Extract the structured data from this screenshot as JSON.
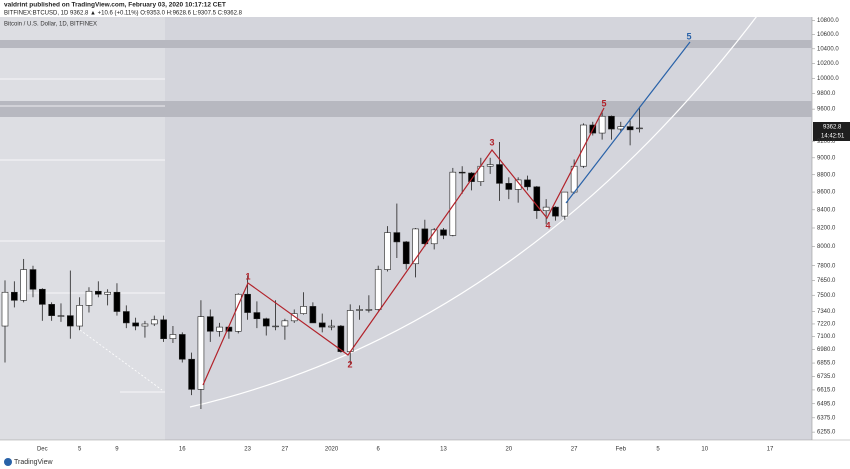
{
  "header": {
    "author_line": "valdrint published on TradingView.com, February 03, 2020 10:17:12 CET",
    "symbol_line": "BITFINEX:BTCUSD, 1D 9362.8 ▲ +10.6 (+0.11%) O:9353.0 H:9628.6 L:9307.5 C:9362.8",
    "logo": "TradingView"
  },
  "chart_data": {
    "type": "candlestick",
    "title": "Bitcoin / U.S. Dollar, 1D, BITFINEX",
    "log_scale": true,
    "up_color": "#ffffff",
    "down_color": "#000000",
    "countdown": "14:42:51",
    "categories": [
      null,
      null,
      null,
      null,
      "Dec",
      null,
      null,
      null,
      "5",
      null,
      null,
      null,
      "9",
      null,
      null,
      null,
      null,
      null,
      null,
      "16",
      null,
      null,
      null,
      null,
      null,
      null,
      "23",
      null,
      null,
      null,
      "27",
      null,
      null,
      null,
      null,
      "2020",
      null,
      null,
      null,
      null,
      "6",
      null,
      null,
      null,
      null,
      null,
      null,
      "13",
      null,
      null,
      null,
      null,
      null,
      null,
      "20",
      null,
      null,
      null,
      null,
      null,
      null,
      "27",
      null,
      null,
      null,
      null,
      "Feb",
      null,
      null,
      null,
      "5",
      null,
      null,
      null,
      null,
      "10",
      null,
      null,
      null,
      null,
      null,
      null,
      "17",
      null,
      null,
      null
    ],
    "candles": [
      [
        7200,
        7650,
        6860,
        7530
      ],
      [
        7530,
        7640,
        7380,
        7450
      ],
      [
        7450,
        7870,
        7430,
        7760
      ],
      [
        7760,
        7800,
        7480,
        7560
      ],
      [
        7560,
        7570,
        7250,
        7410
      ],
      [
        7410,
        7430,
        7250,
        7300
      ],
      [
        7300,
        7420,
        7240,
        7300
      ],
      [
        7300,
        7750,
        7080,
        7200
      ],
      [
        7200,
        7480,
        7160,
        7400
      ],
      [
        7400,
        7580,
        7330,
        7540
      ],
      [
        7540,
        7640,
        7480,
        7510
      ],
      [
        7510,
        7560,
        7400,
        7530
      ],
      [
        7530,
        7620,
        7300,
        7340
      ],
      [
        7340,
        7400,
        7180,
        7230
      ],
      [
        7230,
        7280,
        7160,
        7200
      ],
      [
        7200,
        7250,
        7090,
        7220
      ],
      [
        7220,
        7300,
        7200,
        7260
      ],
      [
        7260,
        7300,
        7050,
        7080
      ],
      [
        7080,
        7200,
        7040,
        7120
      ],
      [
        7120,
        7140,
        6860,
        6890
      ],
      [
        6890,
        6950,
        6570,
        6620
      ],
      [
        6620,
        7450,
        6450,
        7290
      ],
      [
        7290,
        7360,
        7050,
        7150
      ],
      [
        7150,
        7230,
        7100,
        7190
      ],
      [
        7190,
        7200,
        7080,
        7150
      ],
      [
        7150,
        7520,
        7130,
        7510
      ],
      [
        7510,
        7700,
        7260,
        7330
      ],
      [
        7330,
        7440,
        7180,
        7270
      ],
      [
        7270,
        7280,
        7110,
        7200
      ],
      [
        7200,
        7450,
        7160,
        7200
      ],
      [
        7200,
        7270,
        7070,
        7250
      ],
      [
        7250,
        7360,
        7230,
        7320
      ],
      [
        7320,
        7530,
        7310,
        7390
      ],
      [
        7390,
        7430,
        7230,
        7230
      ],
      [
        7230,
        7320,
        7140,
        7190
      ],
      [
        7190,
        7260,
        7160,
        7200
      ],
      [
        7200,
        7210,
        6950,
        6960
      ],
      [
        6960,
        7410,
        6850,
        7350
      ],
      [
        7350,
        7400,
        7260,
        7360
      ],
      [
        7360,
        7500,
        7330,
        7360
      ],
      [
        7360,
        7800,
        7350,
        7760
      ],
      [
        7760,
        8220,
        7740,
        8150
      ],
      [
        8150,
        8470,
        7880,
        8050
      ],
      [
        8050,
        8060,
        7760,
        7820
      ],
      [
        7820,
        8200,
        7680,
        8190
      ],
      [
        8190,
        8290,
        8000,
        8030
      ],
      [
        8030,
        8200,
        7970,
        8180
      ],
      [
        8180,
        8200,
        8080,
        8120
      ],
      [
        8120,
        8880,
        8110,
        8830
      ],
      [
        8830,
        8900,
        8580,
        8820
      ],
      [
        8820,
        8830,
        8620,
        8720
      ],
      [
        8720,
        9000,
        8670,
        8900
      ],
      [
        8900,
        9000,
        8810,
        8920
      ],
      [
        8920,
        9190,
        8500,
        8700
      ],
      [
        8700,
        8770,
        8520,
        8630
      ],
      [
        8630,
        8770,
        8480,
        8740
      ],
      [
        8740,
        8790,
        8620,
        8660
      ],
      [
        8660,
        8670,
        8300,
        8390
      ],
      [
        8390,
        8520,
        8240,
        8430
      ],
      [
        8430,
        8440,
        8280,
        8330
      ],
      [
        8330,
        8600,
        8290,
        8600
      ],
      [
        8600,
        8980,
        8580,
        8900
      ],
      [
        8900,
        9420,
        8880,
        9400
      ],
      [
        9400,
        9440,
        9270,
        9300
      ],
      [
        9300,
        9580,
        9220,
        9510
      ],
      [
        9510,
        9520,
        9220,
        9350
      ],
      [
        9350,
        9440,
        9310,
        9380
      ],
      [
        9380,
        9480,
        9150,
        9340
      ],
      [
        9353.0,
        9628.6,
        9307.5,
        9362.8
      ],
      null,
      null,
      null,
      null,
      null,
      null,
      null,
      null,
      null,
      null,
      null,
      null,
      null,
      null,
      null,
      null,
      null
    ],
    "ylim": [
      6190,
      10920
    ],
    "yticks": [
      {
        "value": 10800,
        "label": "10800.0"
      },
      {
        "value": 10600,
        "label": "10600.0"
      },
      {
        "value": 10400,
        "label": "10400.0"
      },
      {
        "value": 10200,
        "label": "10200.0"
      },
      {
        "value": 10000,
        "label": "10000.0"
      },
      {
        "value": 9800,
        "label": "9800.0"
      },
      {
        "value": 9600,
        "label": "9600.0"
      },
      {
        "value": 9200,
        "label": "9200.0"
      },
      {
        "value": 9000,
        "label": "9000.0"
      },
      {
        "value": 8800,
        "label": "8800.0"
      },
      {
        "value": 8600,
        "label": "8600.0"
      },
      {
        "value": 8400,
        "label": "8400.0"
      },
      {
        "value": 8200,
        "label": "8200.0"
      },
      {
        "value": 8000,
        "label": "8000.0"
      },
      {
        "value": 7800,
        "label": "7800.0"
      },
      {
        "value": 7650,
        "label": "7650.0"
      },
      {
        "value": 7500,
        "label": "7500.0"
      },
      {
        "value": 7340,
        "label": "7340.0"
      },
      {
        "value": 7220,
        "label": "7220.0"
      },
      {
        "value": 7100,
        "label": "7100.0"
      },
      {
        "value": 6980,
        "label": "6980.0"
      },
      {
        "value": 6855,
        "label": "6855.0"
      },
      {
        "value": 6735,
        "label": "6735.0"
      },
      {
        "value": 6615,
        "label": "6615.0"
      },
      {
        "value": 6495,
        "label": "6495.0"
      },
      {
        "value": 6375,
        "label": "6375.0"
      },
      {
        "value": 6255,
        "label": "6255.0"
      }
    ],
    "annotations": [
      {
        "text": "1"
      },
      {
        "text": "2"
      },
      {
        "text": "3"
      },
      {
        "text": "4"
      },
      {
        "text": "5"
      },
      {
        "text": "5"
      }
    ]
  }
}
